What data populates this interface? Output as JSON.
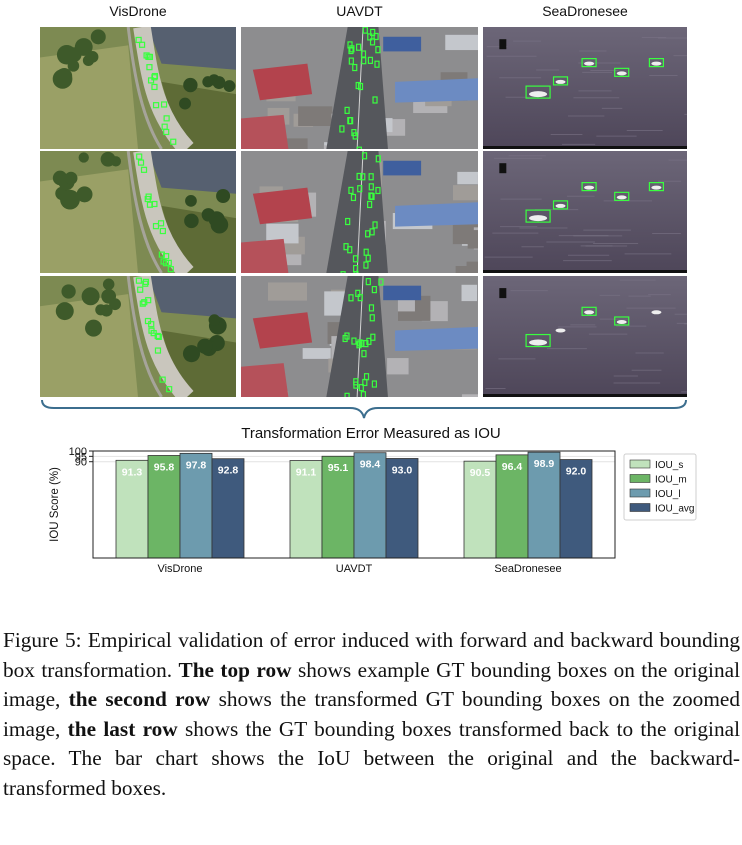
{
  "figure": {
    "columns": [
      {
        "title": "VisDrone",
        "kind": "road"
      },
      {
        "title": "UAVDT",
        "kind": "city"
      },
      {
        "title": "SeaDronesee",
        "kind": "sea"
      }
    ],
    "rows": [
      {
        "description": "GT boxes on the original image"
      },
      {
        "description": "transformed GT boxes on the zoomed image"
      },
      {
        "description": "GT boxes transformed back to original space"
      }
    ],
    "subtitle": "Transformation Error Measured as IOU"
  },
  "chart_data": {
    "type": "bar",
    "categories": [
      "VisDrone",
      "UAVDT",
      "SeaDronesee"
    ],
    "series": [
      {
        "name": "IOU_s",
        "values": [
          91.3,
          91.1,
          90.5
        ],
        "color": "#c0e2bc"
      },
      {
        "name": "IOU_m",
        "values": [
          95.8,
          95.1,
          96.4
        ],
        "color": "#6cb565"
      },
      {
        "name": "IOU_l",
        "values": [
          97.8,
          98.4,
          98.9
        ],
        "color": "#6d9bae"
      },
      {
        "name": "IOU_avg",
        "values": [
          92.8,
          93.0,
          92.0
        ],
        "color": "#3f5a7d"
      }
    ],
    "ylabel": "IOU Score (%)",
    "yticks": [
      90,
      95,
      100
    ],
    "ylim": [
      0,
      100
    ],
    "legend": "right",
    "grid": "horizontal"
  },
  "caption": {
    "lead": "Figure 5: Empirical validation of error induced with forward and backward bounding box transformation. ",
    "b1": "The top row",
    "t1": " shows example GT bounding boxes on the original image, ",
    "b2": "the second row",
    "t2": " shows the transformed GT bounding boxes on the zoomed image, ",
    "b3": "the last row",
    "t3": " shows the GT bounding boxes transformed back to the original space. The bar chart shows the IoU between the original and the backward-transformed boxes."
  }
}
